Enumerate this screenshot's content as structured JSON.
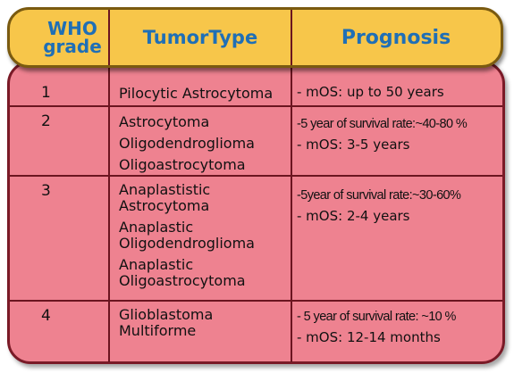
{
  "header": {
    "grade_line1": "WHO",
    "grade_line2": "grade",
    "tumor_type": "TumorType",
    "prognosis": "Prognosis"
  },
  "rows": [
    {
      "grade": "1",
      "types": [
        "Pilocytic Astrocytoma"
      ],
      "prognosis": [
        "- mOS: up to 50 years"
      ]
    },
    {
      "grade": "2",
      "types": [
        "Astrocytoma",
        "Oligodendroglioma",
        "Oligoastrocytoma"
      ],
      "prognosis": [
        "-5 year of survival rate:~40-80 %",
        "- mOS: 3-5 years"
      ]
    },
    {
      "grade": "3",
      "types": [
        "Anaplastistic",
        "Astrocytoma",
        "Anaplastic",
        "Oligodendroglioma",
        "Anaplastic",
        "Oligoastrocytoma"
      ],
      "prognosis": [
        "-5year of survival rate:~30-60%",
        "- mOS: 2-4 years"
      ]
    },
    {
      "grade": "4",
      "types": [
        "Glioblastoma",
        "Multiforme"
      ],
      "prognosis": [
        "- 5 year of survival rate: ~10 %",
        "- mOS: 12-14 months"
      ]
    }
  ],
  "colors": {
    "header_bg": "#f7c64a",
    "header_text": "#1f6fb6",
    "table_bg": "#ee8290",
    "border": "#7a1a27"
  }
}
